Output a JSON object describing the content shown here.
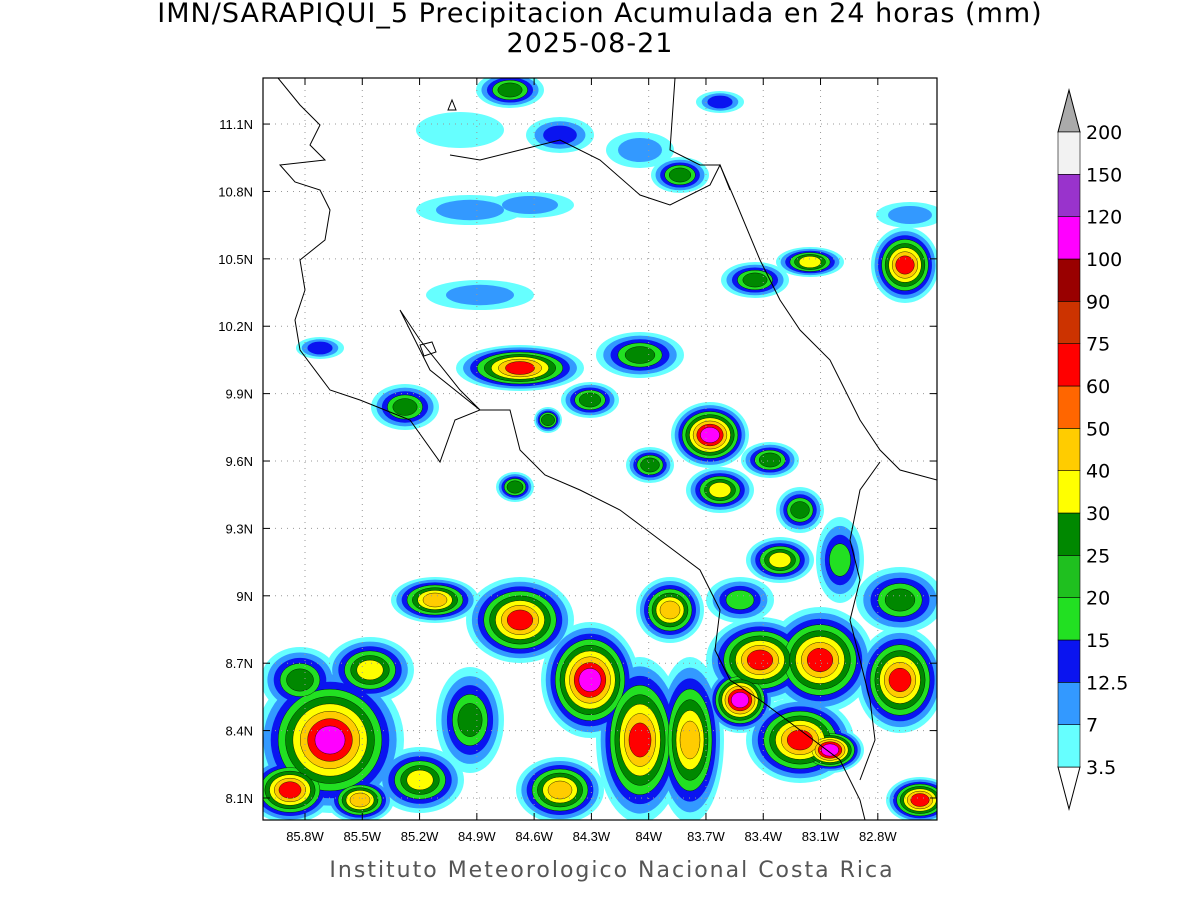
{
  "map": {
    "title": "IMN/SARAPIQUI_5 Precipitacion Acumulada en 24 horas (mm)",
    "subtitle": "2025-08-21",
    "footer": "Instituto Meteorologico Nacional Costa Rica",
    "xlim": [
      -86.02,
      -82.49
    ],
    "ylim": [
      8.002,
      11.305
    ],
    "xticks": [
      {
        "value": -85.8,
        "label": "85.8W"
      },
      {
        "value": -85.5,
        "label": "85.5W"
      },
      {
        "value": -85.2,
        "label": "85.2W"
      },
      {
        "value": -84.9,
        "label": "84.9W"
      },
      {
        "value": -84.6,
        "label": "84.6W"
      },
      {
        "value": -84.3,
        "label": "84.3W"
      },
      {
        "value": -84.0,
        "label": "84W"
      },
      {
        "value": -83.7,
        "label": "83.7W"
      },
      {
        "value": -83.4,
        "label": "83.4W"
      },
      {
        "value": -83.1,
        "label": "83.1W"
      },
      {
        "value": -82.8,
        "label": "82.8W"
      }
    ],
    "yticks": [
      {
        "value": 8.1,
        "label": "8.1N"
      },
      {
        "value": 8.4,
        "label": "8.4N"
      },
      {
        "value": 8.7,
        "label": "8.7N"
      },
      {
        "value": 9.0,
        "label": "9N"
      },
      {
        "value": 9.3,
        "label": "9.3N"
      },
      {
        "value": 9.6,
        "label": "9.6N"
      },
      {
        "value": 9.9,
        "label": "9.9N"
      },
      {
        "value": 10.2,
        "label": "10.2N"
      },
      {
        "value": 10.5,
        "label": "10.5N"
      },
      {
        "value": 10.8,
        "label": "10.8N"
      },
      {
        "value": 11.1,
        "label": "11.1N"
      }
    ],
    "grid": true,
    "colorbar": {
      "levels": [
        3.5,
        7,
        12.5,
        15,
        20,
        25,
        30,
        40,
        50,
        60,
        75,
        90,
        100,
        120,
        150,
        200
      ],
      "colors": [
        "#66ffff",
        "#3399ff",
        "#0a14f0",
        "#22e022",
        "#1fc01f",
        "#008800",
        "#ffff00",
        "#ffcc00",
        "#ff6600",
        "#ff0000",
        "#cc3300",
        "#990000",
        "#ff00ff",
        "#9933cc",
        "#f2f2f2"
      ],
      "under_color": "#ffffff",
      "over_color": "#aaaaaa"
    }
  }
}
